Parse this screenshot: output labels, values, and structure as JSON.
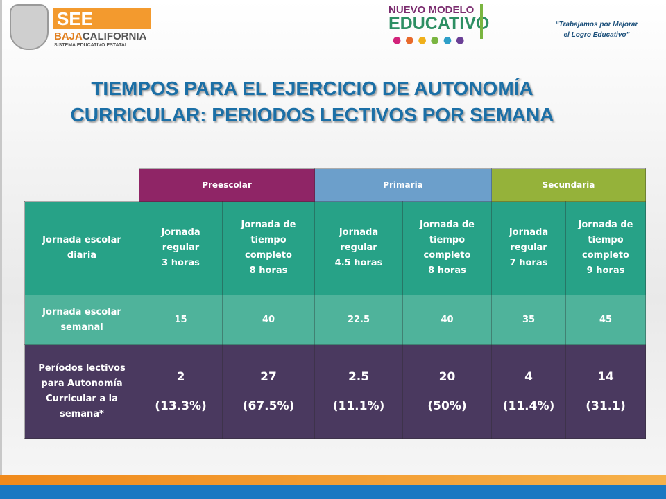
{
  "header": {
    "logo_see": "SEE",
    "logo_baja": "BAJA",
    "logo_california": "CALIFORNIA",
    "logo_sub": "SISTEMA EDUCATIVO ESTATAL",
    "nuevo_modelo": "NUEVO MODELO",
    "educativo": "EDUCATIVO",
    "tagline": [
      "“Trabajamos por Mejorar",
      "el Logro Educativo”"
    ]
  },
  "title": [
    "TIEMPOS PARA EL EJERCICIO DE AUTONOMÍA",
    "CURRICULAR: PERIODOS LECTIVOS POR SEMANA"
  ],
  "table": {
    "levels": [
      "Preescolar",
      "Primaria",
      "Secundaria"
    ],
    "rows": [
      {
        "label": [
          "Jornada escolar",
          "diaria"
        ],
        "cells": [
          [
            "Jornada",
            "regular",
            "3 horas"
          ],
          [
            "Jornada de",
            "tiempo",
            "completo",
            "8 horas"
          ],
          [
            "Jornada",
            "regular",
            "4.5   horas"
          ],
          [
            "Jornada de",
            "tiempo",
            "completo",
            "8 horas"
          ],
          [
            "Jornada",
            "regular",
            "7   horas"
          ],
          [
            "Jornada de",
            "tiempo",
            "completo",
            "9  horas"
          ]
        ]
      },
      {
        "label": [
          "Jornada escolar",
          "semanal"
        ],
        "cells": [
          [
            "15"
          ],
          [
            "40"
          ],
          [
            "22.5"
          ],
          [
            "40"
          ],
          [
            "35"
          ],
          [
            "45"
          ]
        ]
      },
      {
        "label": [
          "Períodos lectivos",
          "para Autonomía",
          "Curricular a la",
          "semana*"
        ],
        "cells": [
          [
            "2",
            "(13.3%)"
          ],
          [
            "27",
            "(67.5%)"
          ],
          [
            "2.5",
            "(11.1%)"
          ],
          [
            "20",
            "(50%)"
          ],
          [
            "4",
            "(11.4%)"
          ],
          [
            "14",
            "(31.1)"
          ]
        ]
      }
    ]
  }
}
